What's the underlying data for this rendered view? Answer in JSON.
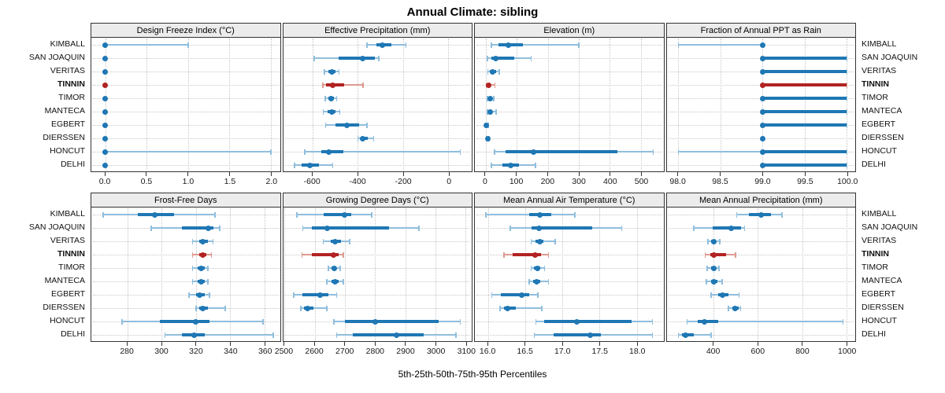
{
  "title": "Annual Climate: sibling",
  "xlabel": "5th-25th-50th-75th-95th Percentiles",
  "locations": [
    "KIMBALL",
    "SAN JOAQUIN",
    "VERITAS",
    "TINNIN",
    "TIMOR",
    "MANTECA",
    "EGBERT",
    "DIERSSEN",
    "HONCUT",
    "DELHI"
  ],
  "highlight_location": "TINNIN",
  "colors": {
    "series": "#1f77b4",
    "series_light": "#8fbedd",
    "highlight": "#b22222",
    "highlight_light": "#dd9a90",
    "strip_bg": "#ececec",
    "grid": "#c6c6c6",
    "frame": "#333333"
  },
  "chart_data": {
    "type": "trellis-percentile-dotplot",
    "percentiles": [
      5,
      25,
      50,
      75,
      95
    ],
    "layout": "2 rows x 4 columns, row labels on both sides, x-axis below each panel row",
    "panels": [
      {
        "id": "design-freeze-index",
        "title": "Design Freeze Index (°C)",
        "xlim": [
          -0.17,
          2.11
        ],
        "ticks": [
          0.0,
          0.5,
          1.0,
          1.5,
          2.0
        ],
        "tick_labels": [
          "0.0",
          "0.5",
          "1.0",
          "1.5",
          "2.0"
        ],
        "values": {
          "KIMBALL": [
            0,
            0,
            0,
            0,
            1.0
          ],
          "SAN JOAQUIN": [
            0,
            0,
            0,
            0,
            0
          ],
          "VERITAS": [
            0,
            0,
            0,
            0,
            0
          ],
          "TINNIN": [
            0,
            0,
            0,
            0,
            0
          ],
          "TIMOR": [
            0,
            0,
            0,
            0,
            0
          ],
          "MANTECA": [
            0,
            0,
            0,
            0,
            0
          ],
          "EGBERT": [
            0,
            0,
            0,
            0,
            0
          ],
          "DIERSSEN": [
            0,
            0,
            0,
            0,
            0
          ],
          "HONCUT": [
            0,
            0,
            0,
            0,
            2.0
          ],
          "DELHI": [
            0,
            0,
            0,
            0,
            0
          ]
        }
      },
      {
        "id": "effective-precipitation",
        "title": "Effective Precipitation (mm)",
        "xlim": [
          -730,
          103
        ],
        "ticks": [
          -600,
          -400,
          -200,
          0
        ],
        "tick_labels": [
          "-600",
          "-400",
          "-200",
          "0"
        ],
        "values": {
          "KIMBALL": [
            -360,
            -319,
            -292,
            -250,
            -188
          ],
          "SAN JOAQUIN": [
            -593,
            -484,
            -377,
            -325,
            -308
          ],
          "VERITAS": [
            -548,
            -530,
            -514,
            -500,
            -483
          ],
          "TINNIN": [
            -555,
            -540,
            -512,
            -462,
            -377
          ],
          "TIMOR": [
            -544,
            -530,
            -519,
            -506,
            -494
          ],
          "MANTECA": [
            -553,
            -532,
            -513,
            -497,
            -479
          ],
          "EGBERT": [
            -542,
            -500,
            -449,
            -395,
            -360
          ],
          "DIERSSEN": [
            -399,
            -388,
            -378,
            -355,
            -330
          ],
          "HONCUT": [
            -634,
            -560,
            -527,
            -465,
            53
          ],
          "DELHI": [
            -679,
            -648,
            -613,
            -570,
            -511
          ]
        }
      },
      {
        "id": "elevation",
        "title": "Elevation (m)",
        "xlim": [
          -35,
          573
        ],
        "ticks": [
          0,
          100,
          200,
          300,
          400,
          500
        ],
        "tick_labels": [
          "0",
          "100",
          "200",
          "300",
          "400",
          "500"
        ],
        "values": {
          "KIMBALL": [
            18,
            42,
            73,
            120,
            300
          ],
          "SAN JOAQUIN": [
            5,
            18,
            33,
            91,
            146
          ],
          "VERITAS": [
            7,
            14,
            21,
            33,
            44
          ],
          "TINNIN": [
            2,
            5,
            9,
            16,
            30
          ],
          "TIMOR": [
            5,
            9,
            14,
            19,
            26
          ],
          "MANTECA": [
            5,
            9,
            14,
            22,
            33
          ],
          "EGBERT": [
            0,
            1,
            3,
            5,
            8
          ],
          "DIERSSEN": [
            2,
            4,
            6,
            8,
            11
          ],
          "HONCUT": [
            28,
            65,
            154,
            424,
            540
          ],
          "DELHI": [
            18,
            55,
            80,
            107,
            160
          ]
        }
      },
      {
        "id": "fraction-annual-ppt-rain",
        "title": "Fraction of Annual PPT as Rain",
        "xlim": [
          97.86,
          100.1
        ],
        "ticks": [
          98.0,
          98.5,
          99.0,
          99.5,
          100.0
        ],
        "tick_labels": [
          "98.0",
          "98.5",
          "99.0",
          "99.5",
          "100.0"
        ],
        "values": {
          "KIMBALL": [
            98,
            99,
            99,
            99,
            99
          ],
          "SAN JOAQUIN": [
            99,
            99,
            99,
            100,
            100
          ],
          "VERITAS": [
            99,
            99,
            99,
            100,
            100
          ],
          "TINNIN": [
            99,
            99,
            99,
            100,
            100
          ],
          "TIMOR": [
            99,
            99,
            99,
            100,
            100
          ],
          "MANTECA": [
            99,
            99,
            99,
            100,
            100
          ],
          "EGBERT": [
            99,
            99,
            99,
            100,
            100
          ],
          "DIERSSEN": [
            99,
            99,
            99,
            99,
            99
          ],
          "HONCUT": [
            98,
            99,
            99,
            100,
            100
          ],
          "DELHI": [
            99,
            99,
            99,
            100,
            100
          ]
        }
      },
      {
        "id": "frost-free-days",
        "title": "Frost-Free Days",
        "xlim": [
          259,
          369
        ],
        "ticks": [
          280,
          300,
          320,
          340,
          360
        ],
        "tick_labels": [
          "280",
          "300",
          "320",
          "340",
          "360"
        ],
        "values": {
          "KIMBALL": [
            266,
            286,
            296,
            307,
            331
          ],
          "SAN JOAQUIN": [
            294,
            312,
            327,
            330,
            334
          ],
          "VERITAS": [
            318,
            322,
            324,
            327,
            330
          ],
          "TINNIN": [
            318,
            322,
            324,
            326,
            329
          ],
          "TIMOR": [
            318,
            321,
            323,
            325,
            327
          ],
          "MANTECA": [
            318,
            321,
            323,
            325,
            327
          ],
          "EGBERT": [
            316,
            320,
            322,
            325,
            328
          ],
          "DIERSSEN": [
            320,
            322,
            324,
            327,
            337
          ],
          "HONCUT": [
            277,
            299,
            320,
            328,
            359
          ],
          "DELHI": [
            302,
            312,
            319,
            325,
            365
          ]
        }
      },
      {
        "id": "growing-degree-days",
        "title": "Growing Degree Days (°C)",
        "xlim": [
          2495,
          3120
        ],
        "ticks": [
          2500,
          2600,
          2700,
          2800,
          2900,
          3000,
          3100
        ],
        "tick_labels": [
          "2500",
          "2600",
          "2700",
          "2800",
          "2900",
          "3000",
          "3100"
        ],
        "values": {
          "KIMBALL": [
            2540,
            2630,
            2698,
            2722,
            2788
          ],
          "SAN JOAQUIN": [
            2560,
            2590,
            2640,
            2845,
            2945
          ],
          "VERITAS": [
            2628,
            2652,
            2667,
            2686,
            2716
          ],
          "TINNIN": [
            2558,
            2590,
            2662,
            2680,
            2695
          ],
          "TIMOR": [
            2645,
            2656,
            2665,
            2672,
            2684
          ],
          "MANTECA": [
            2640,
            2655,
            2666,
            2678,
            2695
          ],
          "EGBERT": [
            2530,
            2560,
            2618,
            2645,
            2672
          ],
          "DIERSSEN": [
            2553,
            2565,
            2577,
            2595,
            2640
          ],
          "HONCUT": [
            2663,
            2700,
            2800,
            3010,
            3082
          ],
          "DELHI": [
            2672,
            2725,
            2870,
            2960,
            3068
          ]
        }
      },
      {
        "id": "mean-annual-air-temperature",
        "title": "Mean Annual Air Temperature (°C)",
        "xlim": [
          15.82,
          18.36
        ],
        "ticks": [
          16.0,
          16.5,
          17.0,
          17.5,
          18.0
        ],
        "tick_labels": [
          "16.0",
          "16.5",
          "17.0",
          "17.5",
          "18.0"
        ],
        "values": {
          "KIMBALL": [
            15.97,
            16.55,
            16.7,
            16.85,
            17.17
          ],
          "SAN JOAQUIN": [
            16.3,
            16.58,
            16.68,
            17.4,
            17.8
          ],
          "VERITAS": [
            16.58,
            16.64,
            16.69,
            16.74,
            16.9
          ],
          "TINNIN": [
            16.21,
            16.33,
            16.63,
            16.71,
            16.81
          ],
          "TIMOR": [
            16.58,
            16.62,
            16.66,
            16.7,
            16.76
          ],
          "MANTECA": [
            16.55,
            16.61,
            16.65,
            16.7,
            16.81
          ],
          "EGBERT": [
            16.05,
            16.17,
            16.45,
            16.55,
            16.67
          ],
          "DIERSSEN": [
            16.16,
            16.21,
            16.26,
            16.37,
            16.72
          ],
          "HONCUT": [
            16.64,
            16.75,
            17.19,
            17.93,
            18.21
          ],
          "DELHI": [
            16.62,
            16.88,
            17.37,
            17.52,
            18.21
          ]
        }
      },
      {
        "id": "mean-annual-precipitation",
        "title": "Mean Annual Precipitation (mm)",
        "xlim": [
          188,
          1040
        ],
        "ticks": [
          400,
          600,
          800,
          1000
        ],
        "tick_labels": [
          "400",
          "600",
          "800",
          "1000"
        ],
        "values": {
          "KIMBALL": [
            505,
            560,
            615,
            660,
            710
          ],
          "SAN JOAQUIN": [
            310,
            395,
            480,
            525,
            540
          ],
          "VERITAS": [
            375,
            390,
            400,
            412,
            428
          ],
          "TINNIN": [
            362,
            385,
            400,
            455,
            500
          ],
          "TIMOR": [
            372,
            390,
            400,
            412,
            425
          ],
          "MANTECA": [
            368,
            390,
            402,
            418,
            438
          ],
          "EGBERT": [
            388,
            420,
            440,
            468,
            515
          ],
          "DIERSSEN": [
            468,
            485,
            497,
            512,
            523
          ],
          "HONCUT": [
            280,
            330,
            360,
            420,
            985
          ],
          "DELHI": [
            242,
            258,
            275,
            310,
            390
          ]
        }
      }
    ]
  }
}
